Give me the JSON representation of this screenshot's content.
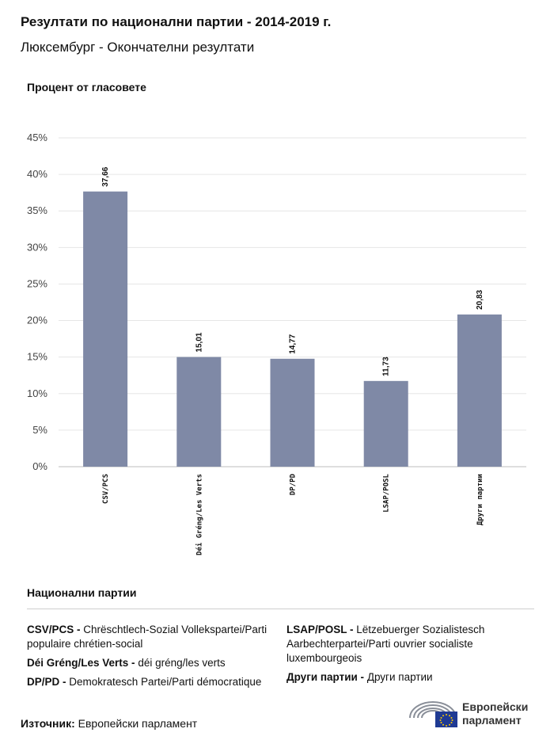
{
  "header": {
    "title": "Резултати по национални партии - 2014-2019 г.",
    "subtitle": "Люксембург - Окончателни резултати"
  },
  "chart_data": {
    "type": "bar",
    "ylabel": "Процент от гласовете",
    "ylim": [
      0,
      45
    ],
    "yticks": [
      "0%",
      "5%",
      "10%",
      "15%",
      "20%",
      "25%",
      "30%",
      "35%",
      "40%",
      "45%"
    ],
    "categories": [
      "CSV/PCS",
      "Déi Gréng/Les Verts",
      "DP/PD",
      "LSAP/POSL",
      "Други партии"
    ],
    "values": [
      37.66,
      15.01,
      14.77,
      11.73,
      20.83
    ],
    "value_labels": [
      "37,66",
      "15,01",
      "14,77",
      "11,73",
      "20,83"
    ],
    "bar_color": "#7f89a6",
    "grid": true
  },
  "legend": {
    "title": "Национални партии",
    "left": [
      {
        "abbr": "CSV/PCS - ",
        "name": "Chrëschtlech-Sozial Vollekspartei/Parti populaire chrétien-social"
      },
      {
        "abbr": "Déi Gréng/Les Verts - ",
        "name": "déi gréng/les verts"
      },
      {
        "abbr": "DP/PD - ",
        "name": "Demokratesch Partei/Parti démocratique"
      }
    ],
    "right": [
      {
        "abbr": "LSAP/POSL - ",
        "name": "Lëtzebuerger Sozialistesch Aarbechterpartei/Parti ouvrier socialiste luxembourgeois"
      },
      {
        "abbr": "Други партии - ",
        "name": "Други партии"
      }
    ]
  },
  "footer": {
    "source_label": "Източник: ",
    "source_value": "Европейски парламент",
    "logo_line1": "Европейски",
    "logo_line2": "парламент",
    "logo_icon": "european-parliament-logo-icon"
  }
}
